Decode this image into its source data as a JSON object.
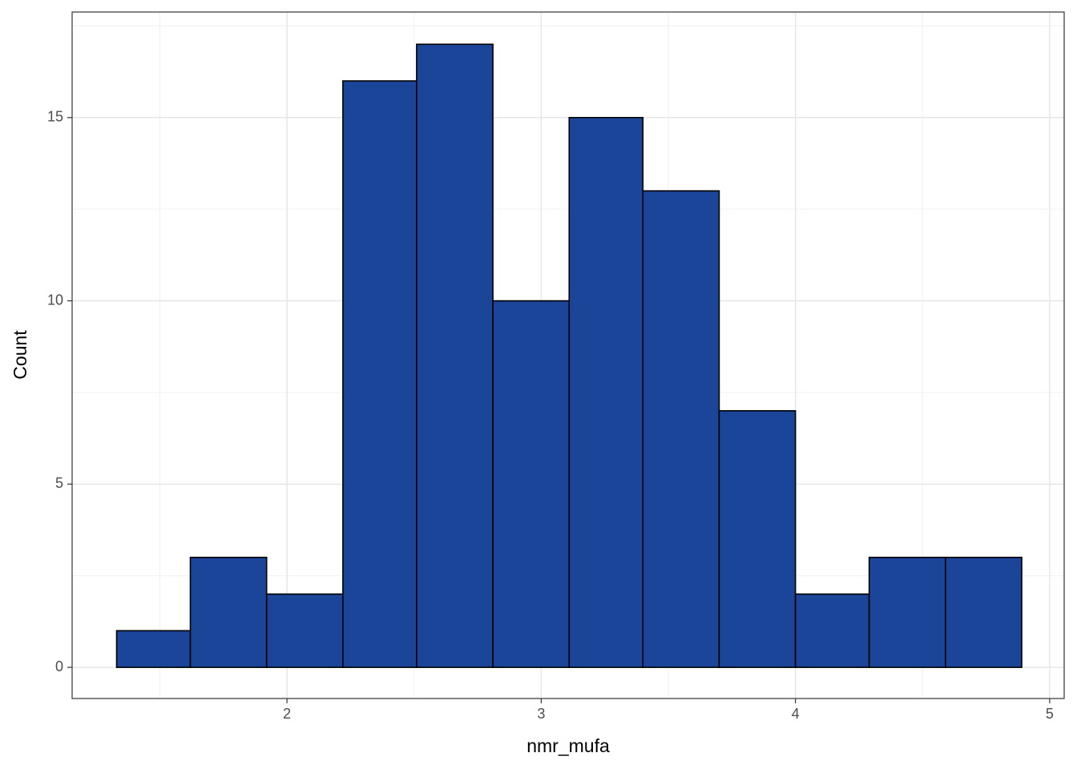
{
  "chart_data": {
    "type": "histogram",
    "x_label": "nmr_mufa",
    "y_label": "Count",
    "bins": [
      1.33,
      1.62,
      1.92,
      2.22,
      2.51,
      2.81,
      3.11,
      3.4,
      3.7,
      4.0,
      4.29,
      4.59,
      4.89
    ],
    "values": [
      1,
      3,
      2,
      16,
      17,
      10,
      15,
      13,
      7,
      2,
      3,
      3
    ],
    "color": "#1a4599",
    "edge_color": "#000000",
    "xlim": [
      1.155,
      5.057
    ],
    "xticks": [
      2,
      3,
      4,
      5
    ],
    "x_minor_ticks": [
      1.5,
      2.5,
      3.5,
      4.5
    ],
    "ylim": [
      -0.85,
      17.88
    ],
    "yticks": [
      0,
      5,
      10,
      15
    ],
    "y_minor_ticks": [
      2.5,
      7.5,
      12.5,
      17.5
    ],
    "grid": true
  }
}
